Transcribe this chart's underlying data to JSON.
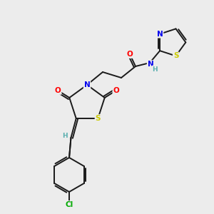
{
  "bg_color": "#ececec",
  "bond_color": "#1a1a1a",
  "atom_colors": {
    "O": "#ff0000",
    "N": "#0000ee",
    "S": "#cccc00",
    "Cl": "#00aa00",
    "H": "#5aafaf",
    "C": "#1a1a1a"
  },
  "figsize": [
    3.0,
    3.0
  ],
  "dpi": 100
}
